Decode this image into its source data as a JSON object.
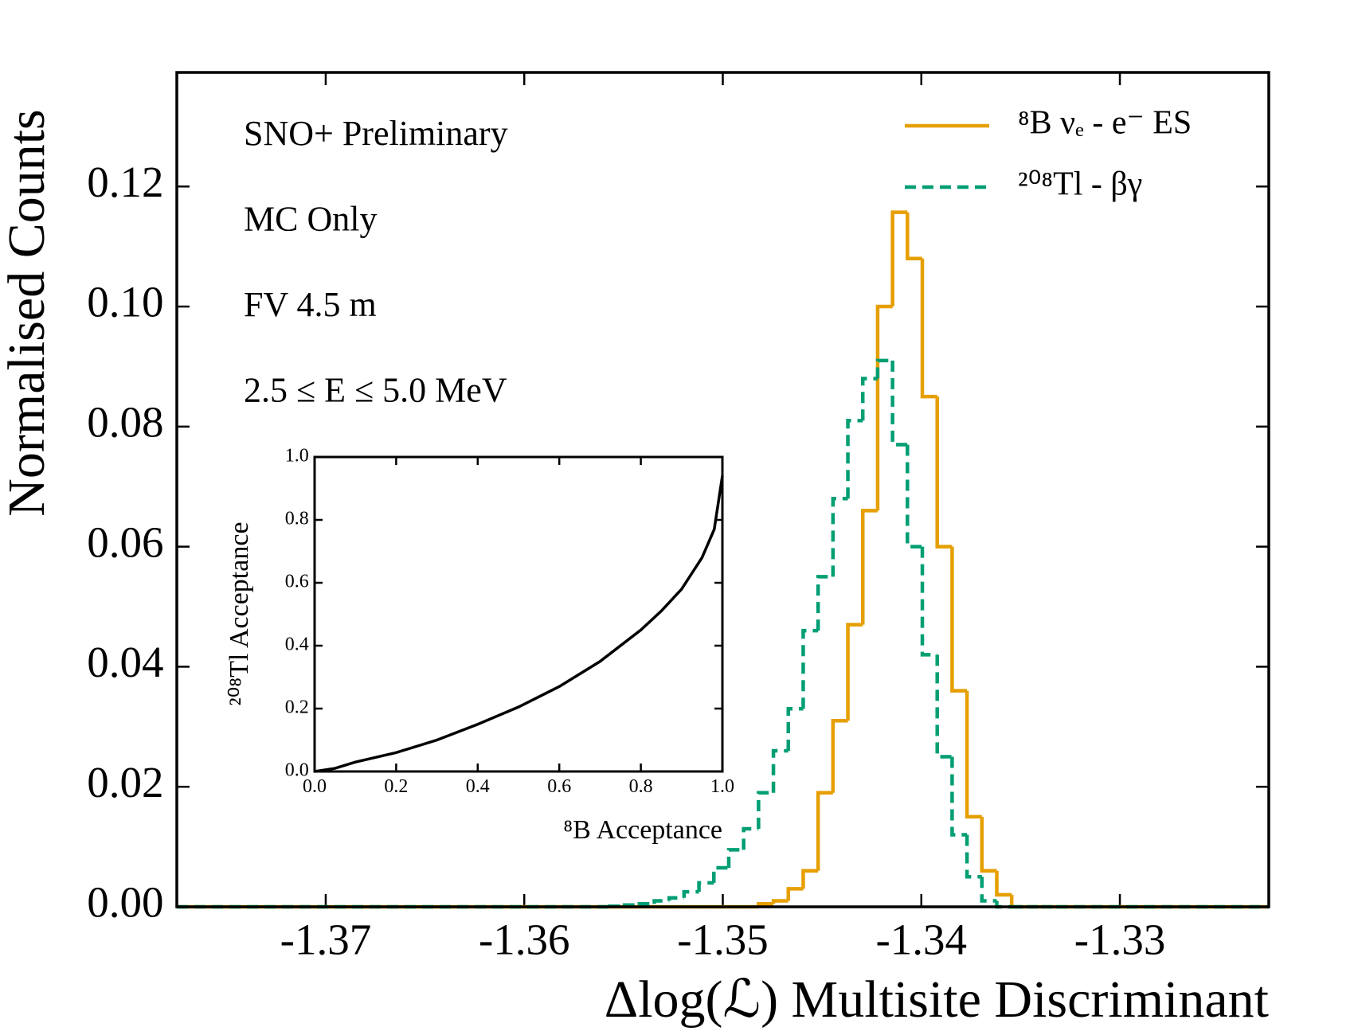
{
  "chart_data": [
    {
      "type": "histogram",
      "xlabel": "Δlog(ℒ) Multisite Discriminant",
      "ylabel": "Normalised Counts",
      "annotations": [
        "SNO+ Preliminary",
        "MC Only",
        "FV 4.5 m",
        "2.5 ≤ E ≤ 5.0 MeV"
      ],
      "legend": "upper right",
      "xlim": [
        -1.3775,
        -1.3225
      ],
      "ylim": [
        0,
        0.139
      ],
      "xticks": [
        -1.37,
        -1.36,
        -1.35,
        -1.34,
        -1.33
      ],
      "yticks": [
        {
          "value": 0,
          "label": "0.00"
        },
        {
          "value": 0.02,
          "label": "0.02"
        },
        {
          "value": 0.04,
          "label": "0.04"
        },
        {
          "value": 0.06,
          "label": "0.06"
        },
        {
          "value": 0.08,
          "label": "0.08"
        },
        {
          "value": 0.1,
          "label": "0.10"
        },
        {
          "value": 0.12,
          "label": "0.12"
        }
      ],
      "bins": [
        -1.3775,
        -1.3557,
        -1.35495,
        -1.3542,
        -1.35345,
        -1.3527,
        -1.35195,
        -1.3512,
        -1.35045,
        -1.3497,
        -1.34895,
        -1.3482,
        -1.34745,
        -1.3467,
        -1.34595,
        -1.3452,
        -1.34445,
        -1.3437,
        -1.34295,
        -1.3422,
        -1.34145,
        -1.3407,
        -1.33995,
        -1.3392,
        -1.33845,
        -1.3377,
        -1.33695,
        -1.3362,
        -1.33545,
        -1.3347,
        -1.33395,
        -1.3332,
        -1.3225
      ],
      "series": [
        {
          "name": "⁸B νₑ - e⁻ ES",
          "color": "#e69f00",
          "dash": false,
          "values": [
            0,
            0,
            0,
            0,
            0,
            0,
            0,
            0,
            0,
            0,
            0,
            0.0005,
            0.001,
            0.003,
            0.006,
            0.019,
            0.031,
            0.047,
            0.066,
            0.1,
            0.1157,
            0.108,
            0.085,
            0.06,
            0.036,
            0.015,
            0.006,
            0.002,
            0,
            0,
            0,
            0
          ]
        },
        {
          "name": "²⁰⁸Tl - βγ",
          "color": "#009e73",
          "dash": true,
          "values": [
            0,
            0.0001,
            0.0003,
            0.0005,
            0.001,
            0.0015,
            0.0025,
            0.004,
            0.0065,
            0.0095,
            0.013,
            0.019,
            0.026,
            0.033,
            0.046,
            0.055,
            0.068,
            0.081,
            0.088,
            0.091,
            0.077,
            0.06,
            0.042,
            0.025,
            0.012,
            0.005,
            0.001,
            0,
            0,
            0,
            0,
            0
          ]
        }
      ]
    },
    {
      "type": "line",
      "xlabel": "⁸B Acceptance",
      "ylabel": "²⁰⁸Tl Acceptance",
      "xlim": [
        0,
        1
      ],
      "ylim": [
        0,
        1
      ],
      "xticks": [
        {
          "value": 0,
          "label": "0.0"
        },
        {
          "value": 0.2,
          "label": "0.2"
        },
        {
          "value": 0.4,
          "label": "0.4"
        },
        {
          "value": 0.6,
          "label": "0.6"
        },
        {
          "value": 0.8,
          "label": "0.8"
        },
        {
          "value": 1,
          "label": "1.0"
        }
      ],
      "yticks": [
        {
          "value": 0,
          "label": "0.0"
        },
        {
          "value": 0.2,
          "label": "0.2"
        },
        {
          "value": 0.4,
          "label": "0.4"
        },
        {
          "value": 0.6,
          "label": "0.6"
        },
        {
          "value": 0.8,
          "label": "0.8"
        },
        {
          "value": 1,
          "label": "1.0"
        }
      ],
      "x": [
        0,
        0.05,
        0.1,
        0.2,
        0.3,
        0.4,
        0.5,
        0.6,
        0.7,
        0.8,
        0.85,
        0.9,
        0.95,
        0.98,
        1.0
      ],
      "series": [
        {
          "color": "#000000",
          "values": [
            0,
            0.01,
            0.03,
            0.06,
            0.1,
            0.15,
            0.205,
            0.27,
            0.35,
            0.45,
            0.51,
            0.58,
            0.68,
            0.77,
            0.94
          ]
        }
      ]
    }
  ]
}
